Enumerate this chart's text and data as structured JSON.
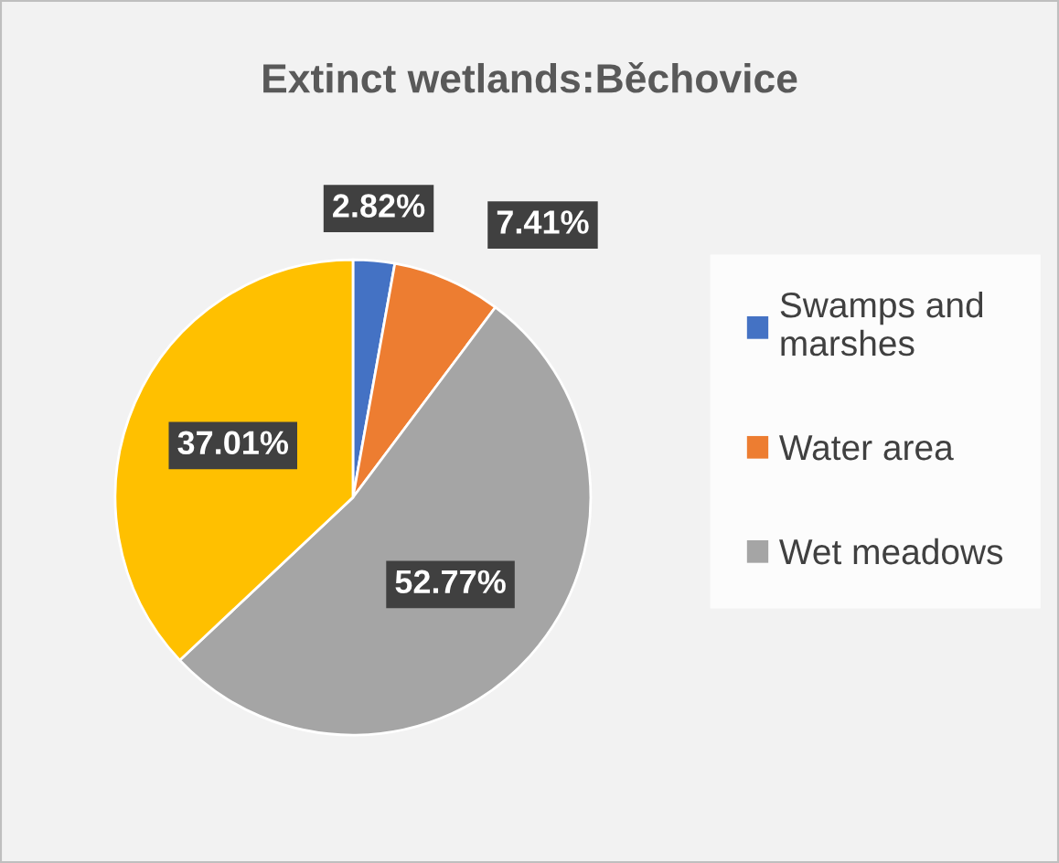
{
  "chart_data": {
    "type": "pie",
    "title": "Extinct wetlands:Běchovice",
    "categories": [
      "Swamps and marshes",
      "Water area",
      "Wet meadows",
      null
    ],
    "values": [
      2.82,
      7.41,
      52.77,
      37.01
    ],
    "colors": [
      "#4472c4",
      "#ed7d31",
      "#a5a5a5",
      "#ffc000"
    ],
    "value_labels": [
      "2.82%",
      "7.41%",
      "52.77%",
      "37.01%"
    ],
    "legend": "right"
  }
}
